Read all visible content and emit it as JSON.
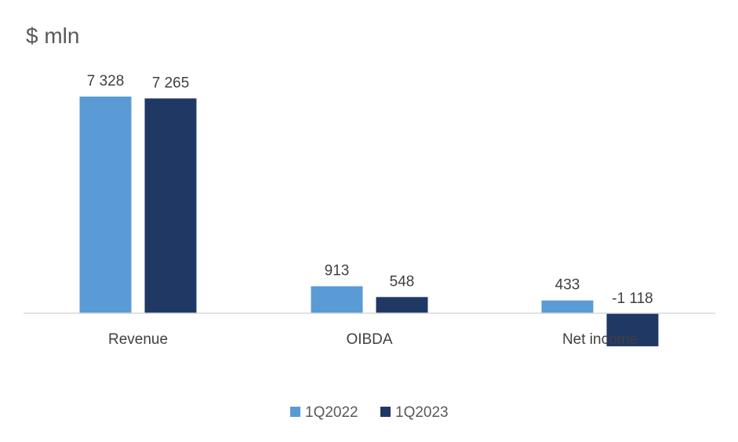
{
  "chart_data": {
    "type": "bar",
    "title": "$ mln",
    "categories": [
      "Revenue",
      "OIBDA",
      "Net income"
    ],
    "series": [
      {
        "name": "1Q2022",
        "values": [
          7328,
          913,
          433
        ],
        "labels": [
          "7 328",
          "913",
          "433"
        ],
        "color": "#5b9bd5"
      },
      {
        "name": "1Q2023",
        "values": [
          7265,
          548,
          -1118
        ],
        "labels": [
          "7 265",
          "548",
          "-1 118"
        ],
        "color": "#203864"
      }
    ],
    "ylim": [
      -1300,
      7700
    ],
    "grid": false,
    "legend": "bottom",
    "axis_color": "#d9d9d9"
  }
}
